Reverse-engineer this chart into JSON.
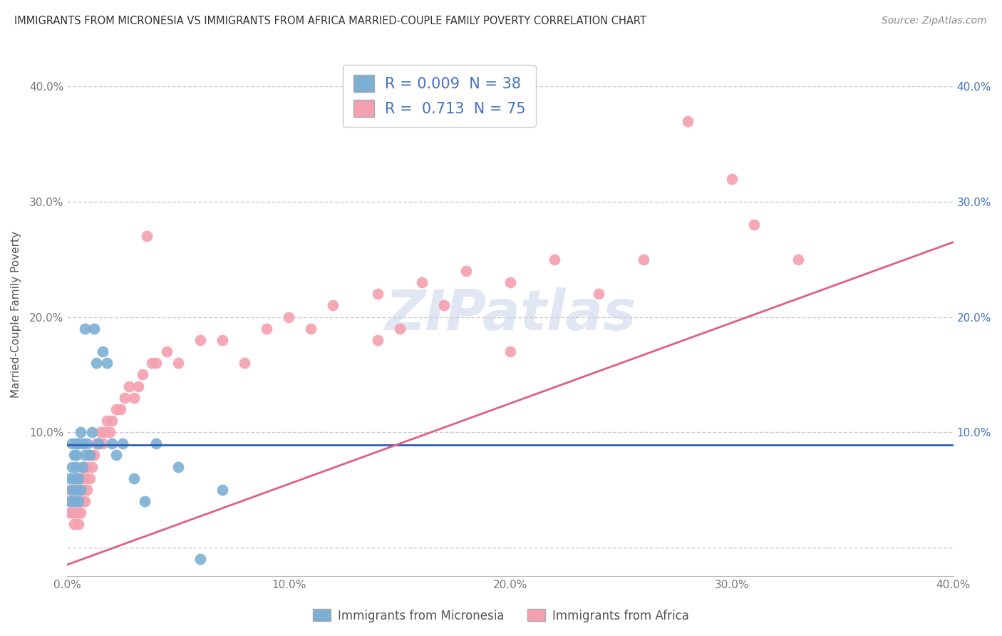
{
  "title": "IMMIGRANTS FROM MICRONESIA VS IMMIGRANTS FROM AFRICA MARRIED-COUPLE FAMILY POVERTY CORRELATION CHART",
  "source": "Source: ZipAtlas.com",
  "ylabel": "Married-Couple Family Poverty",
  "xlim": [
    0.0,
    0.4
  ],
  "ylim": [
    -0.025,
    0.43
  ],
  "legend_labels": [
    "Immigrants from Micronesia",
    "Immigrants from Africa"
  ],
  "R_micronesia": 0.009,
  "N_micronesia": 38,
  "R_africa": 0.713,
  "N_africa": 75,
  "color_micronesia": "#7BAFD4",
  "color_africa": "#F4A0B0",
  "line_color_micronesia": "#3060B0",
  "line_color_africa": "#E06080",
  "background_color": "#FFFFFF",
  "grid_color": "#CCCCCC",
  "mic_line_y": 0.089,
  "africa_line_x0": 0.0,
  "africa_line_y0": -0.015,
  "africa_line_x1": 0.4,
  "africa_line_y1": 0.265,
  "mic_x": [
    0.001,
    0.001,
    0.002,
    0.002,
    0.002,
    0.003,
    0.003,
    0.003,
    0.004,
    0.004,
    0.004,
    0.004,
    0.005,
    0.005,
    0.005,
    0.006,
    0.006,
    0.007,
    0.007,
    0.008,
    0.008,
    0.009,
    0.01,
    0.011,
    0.012,
    0.013,
    0.014,
    0.016,
    0.018,
    0.02,
    0.022,
    0.025,
    0.03,
    0.035,
    0.04,
    0.05,
    0.06,
    0.07
  ],
  "mic_y": [
    0.04,
    0.06,
    0.05,
    0.07,
    0.09,
    0.04,
    0.06,
    0.08,
    0.05,
    0.07,
    0.08,
    0.09,
    0.04,
    0.06,
    0.09,
    0.05,
    0.1,
    0.07,
    0.09,
    0.08,
    0.19,
    0.09,
    0.08,
    0.1,
    0.19,
    0.16,
    0.09,
    0.17,
    0.16,
    0.09,
    0.08,
    0.09,
    0.06,
    0.04,
    0.09,
    0.07,
    -0.01,
    0.05
  ],
  "afr_x": [
    0.001,
    0.001,
    0.001,
    0.002,
    0.002,
    0.002,
    0.003,
    0.003,
    0.003,
    0.003,
    0.004,
    0.004,
    0.004,
    0.004,
    0.005,
    0.005,
    0.005,
    0.005,
    0.006,
    0.006,
    0.006,
    0.007,
    0.007,
    0.007,
    0.008,
    0.008,
    0.008,
    0.009,
    0.009,
    0.01,
    0.01,
    0.011,
    0.012,
    0.013,
    0.014,
    0.015,
    0.016,
    0.017,
    0.018,
    0.019,
    0.02,
    0.022,
    0.024,
    0.026,
    0.028,
    0.03,
    0.032,
    0.034,
    0.036,
    0.038,
    0.04,
    0.045,
    0.05,
    0.06,
    0.07,
    0.08,
    0.09,
    0.1,
    0.11,
    0.12,
    0.14,
    0.16,
    0.18,
    0.2,
    0.22,
    0.24,
    0.26,
    0.28,
    0.3,
    0.31,
    0.14,
    0.15,
    0.17,
    0.33,
    0.2
  ],
  "afr_y": [
    0.03,
    0.04,
    0.05,
    0.03,
    0.04,
    0.05,
    0.02,
    0.03,
    0.05,
    0.06,
    0.03,
    0.04,
    0.05,
    0.06,
    0.02,
    0.03,
    0.05,
    0.06,
    0.03,
    0.04,
    0.06,
    0.04,
    0.05,
    0.07,
    0.04,
    0.06,
    0.07,
    0.05,
    0.07,
    0.06,
    0.08,
    0.07,
    0.08,
    0.09,
    0.09,
    0.1,
    0.09,
    0.1,
    0.11,
    0.1,
    0.11,
    0.12,
    0.12,
    0.13,
    0.14,
    0.13,
    0.14,
    0.15,
    0.27,
    0.16,
    0.16,
    0.17,
    0.16,
    0.18,
    0.18,
    0.16,
    0.19,
    0.2,
    0.19,
    0.21,
    0.22,
    0.23,
    0.24,
    0.23,
    0.25,
    0.22,
    0.25,
    0.37,
    0.32,
    0.28,
    0.18,
    0.19,
    0.21,
    0.25,
    0.17
  ]
}
